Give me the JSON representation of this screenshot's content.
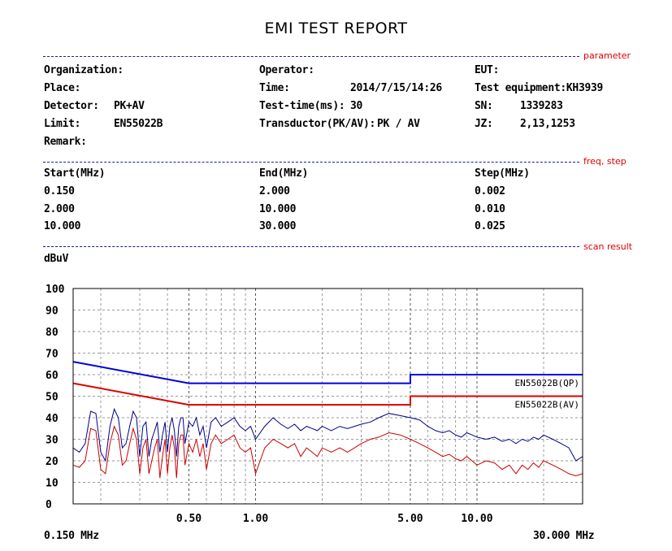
{
  "report": {
    "title": "EMI TEST REPORT"
  },
  "sections": {
    "parameter": "parameter",
    "freq_step": "freq, step",
    "scan_result": "scan result"
  },
  "params": {
    "organization_label": "Organization:",
    "place_label": "Place:",
    "detector_label": "Detector:",
    "detector_value": "PK+AV",
    "limit_label": "Limit:",
    "limit_value": "EN55022B",
    "remark_label": "Remark:",
    "operator_label": "Operator:",
    "time_label": "Time:",
    "time_value": "2014/7/15/14:26",
    "test_time_label": "Test-time(ms):",
    "test_time_value": "30",
    "transductor_label": "Transductor(PK/AV):",
    "transductor_value": "PK / AV",
    "eut_label": "EUT:",
    "test_equipment_label": "Test equipment:KH3939",
    "sn_label": "SN:",
    "sn_value": "1339283",
    "jz_label": "JZ:",
    "jz_value": "2,13,1253"
  },
  "freq_table": {
    "headers": [
      "Start(MHz)",
      "End(MHz)",
      "Step(MHz)"
    ],
    "rows": [
      [
        "0.150",
        "2.000",
        "0.002"
      ],
      [
        "2.000",
        "10.000",
        "0.010"
      ],
      [
        "10.000",
        "30.000",
        "0.025"
      ]
    ]
  },
  "chart_data": {
    "type": "line",
    "ylabel": "dBuV",
    "x_scale": "log",
    "xlim": [
      0.15,
      30
    ],
    "ylim": [
      0,
      100
    ],
    "y_ticks": [
      0,
      10,
      20,
      30,
      40,
      50,
      60,
      70,
      80,
      90,
      100
    ],
    "x_tick_labels": [
      {
        "x": 0.5,
        "label": "0.50"
      },
      {
        "x": 1,
        "label": "1.00"
      },
      {
        "x": 5,
        "label": "5.00"
      },
      {
        "x": 10,
        "label": "10.00"
      }
    ],
    "x_min_label": "0.150 MHz",
    "x_max_label": "30.000 MHz",
    "grid": true,
    "limit_lines": [
      {
        "name": "EN55022B(QP)",
        "color": "#0000dd",
        "points": [
          [
            0.15,
            66
          ],
          [
            0.5,
            56
          ],
          [
            5,
            56
          ],
          [
            5,
            60
          ],
          [
            30,
            60
          ]
        ]
      },
      {
        "name": "EN55022B(AV)",
        "color": "#dd0000",
        "points": [
          [
            0.15,
            56
          ],
          [
            0.5,
            46
          ],
          [
            5,
            46
          ],
          [
            5,
            50
          ],
          [
            30,
            50
          ]
        ]
      }
    ],
    "series": [
      {
        "color": "#00008b",
        "x": [
          0.15,
          0.16,
          0.17,
          0.18,
          0.19,
          0.2,
          0.21,
          0.22,
          0.23,
          0.24,
          0.25,
          0.26,
          0.27,
          0.28,
          0.29,
          0.3,
          0.31,
          0.32,
          0.33,
          0.34,
          0.35,
          0.36,
          0.37,
          0.38,
          0.39,
          0.4,
          0.41,
          0.42,
          0.43,
          0.44,
          0.45,
          0.46,
          0.47,
          0.48,
          0.5,
          0.52,
          0.54,
          0.56,
          0.58,
          0.6,
          0.63,
          0.66,
          0.7,
          0.75,
          0.8,
          0.85,
          0.9,
          0.95,
          1.0,
          1.1,
          1.2,
          1.3,
          1.4,
          1.5,
          1.6,
          1.7,
          1.8,
          1.9,
          2.0,
          2.2,
          2.4,
          2.6,
          2.8,
          3.0,
          3.3,
          3.6,
          4.0,
          4.5,
          5.0,
          5.5,
          6.0,
          6.5,
          7.0,
          7.5,
          8.0,
          8.5,
          9.0,
          9.5,
          10,
          11,
          12,
          13,
          14,
          15,
          16,
          17,
          18,
          19,
          20,
          22,
          24,
          26,
          28,
          30
        ],
        "values": [
          26,
          24,
          28,
          43,
          42,
          24,
          20,
          36,
          44,
          40,
          26,
          28,
          36,
          43,
          40,
          22,
          36,
          38,
          22,
          30,
          34,
          38,
          24,
          32,
          38,
          24,
          36,
          40,
          34,
          22,
          36,
          40,
          40,
          28,
          38,
          36,
          40,
          32,
          36,
          26,
          38,
          40,
          36,
          38,
          40,
          36,
          34,
          36,
          30,
          36,
          40,
          37,
          35,
          37,
          34,
          36,
          35,
          34,
          36,
          34,
          36,
          35,
          36,
          37,
          38,
          40,
          42,
          41,
          40,
          39,
          36,
          34,
          33,
          34,
          32,
          31,
          33,
          32,
          31,
          30,
          31,
          29,
          30,
          28,
          30,
          29,
          31,
          30,
          32,
          30,
          28,
          26,
          20,
          22
        ]
      },
      {
        "color": "#cc0000",
        "x": [
          0.15,
          0.16,
          0.17,
          0.18,
          0.19,
          0.2,
          0.21,
          0.22,
          0.23,
          0.24,
          0.25,
          0.26,
          0.27,
          0.28,
          0.29,
          0.3,
          0.31,
          0.32,
          0.33,
          0.34,
          0.35,
          0.36,
          0.37,
          0.38,
          0.39,
          0.4,
          0.41,
          0.42,
          0.43,
          0.44,
          0.45,
          0.46,
          0.47,
          0.48,
          0.5,
          0.52,
          0.54,
          0.56,
          0.58,
          0.6,
          0.63,
          0.66,
          0.7,
          0.75,
          0.8,
          0.85,
          0.9,
          0.95,
          1.0,
          1.1,
          1.2,
          1.3,
          1.4,
          1.5,
          1.6,
          1.7,
          1.8,
          1.9,
          2.0,
          2.2,
          2.4,
          2.6,
          2.8,
          3.0,
          3.3,
          3.6,
          4.0,
          4.5,
          5.0,
          5.5,
          6.0,
          6.5,
          7.0,
          7.5,
          8.0,
          8.5,
          9.0,
          9.5,
          10,
          11,
          12,
          13,
          14,
          15,
          16,
          17,
          18,
          19,
          20,
          22,
          24,
          26,
          28,
          30
        ],
        "values": [
          18,
          17,
          20,
          35,
          34,
          16,
          14,
          28,
          36,
          32,
          18,
          20,
          28,
          35,
          30,
          14,
          26,
          30,
          14,
          20,
          26,
          30,
          12,
          22,
          30,
          14,
          26,
          32,
          26,
          12,
          28,
          32,
          32,
          18,
          28,
          24,
          30,
          22,
          28,
          16,
          28,
          32,
          28,
          30,
          32,
          26,
          24,
          26,
          14,
          26,
          30,
          28,
          26,
          28,
          22,
          26,
          24,
          22,
          26,
          24,
          26,
          24,
          26,
          28,
          30,
          31,
          33,
          32,
          30,
          28,
          26,
          24,
          22,
          23,
          21,
          20,
          22,
          20,
          18,
          20,
          19,
          16,
          18,
          14,
          18,
          16,
          19,
          17,
          20,
          18,
          16,
          14,
          13,
          14
        ]
      }
    ]
  }
}
